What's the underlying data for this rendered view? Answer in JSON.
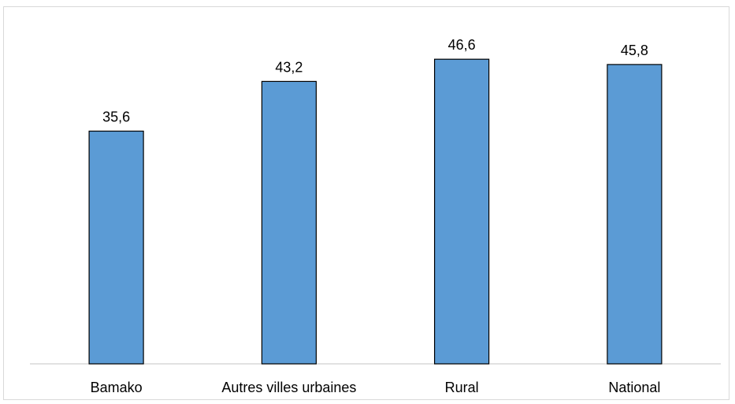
{
  "chart_data": {
    "type": "bar",
    "categories": [
      "Bamako",
      "Autres villes urbaines",
      "Rural",
      "National"
    ],
    "values": [
      35.6,
      43.2,
      46.6,
      45.8
    ],
    "value_labels": [
      "35,6",
      "43,2",
      "46,6",
      "45,8"
    ],
    "title": "",
    "xlabel": "",
    "ylabel": "",
    "ylim": [
      0,
      50
    ],
    "grid": false,
    "legend": "none",
    "bar_color": "#5b9bd5",
    "bar_outline": "#000000"
  }
}
